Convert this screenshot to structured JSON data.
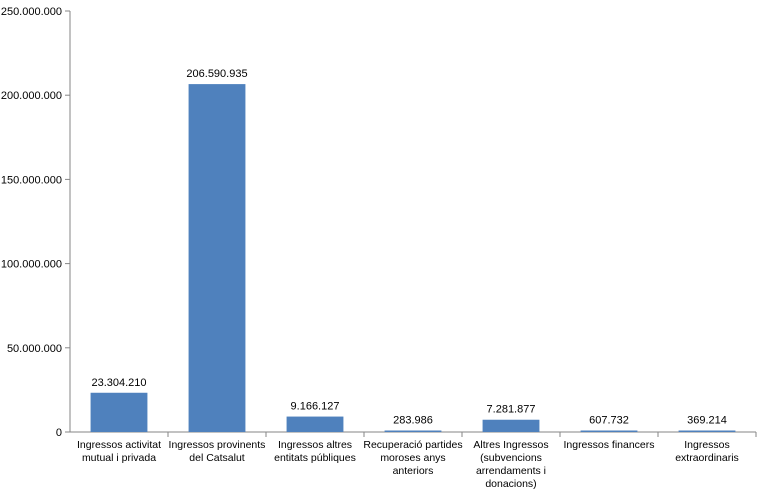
{
  "chart_data": {
    "type": "bar",
    "title": "",
    "xlabel": "",
    "ylabel": "",
    "ylim": [
      0,
      250000000
    ],
    "yticks": [
      0,
      50000000,
      100000000,
      150000000,
      200000000,
      250000000
    ],
    "ytick_labels": [
      "0",
      "50.000.000",
      "100.000.000",
      "150.000.000",
      "200.000.000",
      "250.000.000"
    ],
    "grid": false,
    "bar_color": "#4F81BD",
    "categories": [
      [
        "Ingressos activitat",
        "mutual i privada"
      ],
      [
        "Ingressos provinents",
        "del Catsalut"
      ],
      [
        "Ingressos altres",
        "entitats públiques"
      ],
      [
        "Recuperació partides",
        "moroses anys",
        "anteriors"
      ],
      [
        "Altres Ingressos",
        "(subvencions",
        "arrendaments i",
        "donacions)"
      ],
      [
        "Ingressos financers"
      ],
      [
        "Ingressos",
        "extraordinaris"
      ]
    ],
    "values": [
      23304210,
      206590935,
      9166127,
      283986,
      7281877,
      607732,
      369214
    ],
    "value_labels": [
      "23.304.210",
      "206.590.935",
      "9.166.127",
      "283.986",
      "7.281.877",
      "607.732",
      "369.214"
    ]
  }
}
